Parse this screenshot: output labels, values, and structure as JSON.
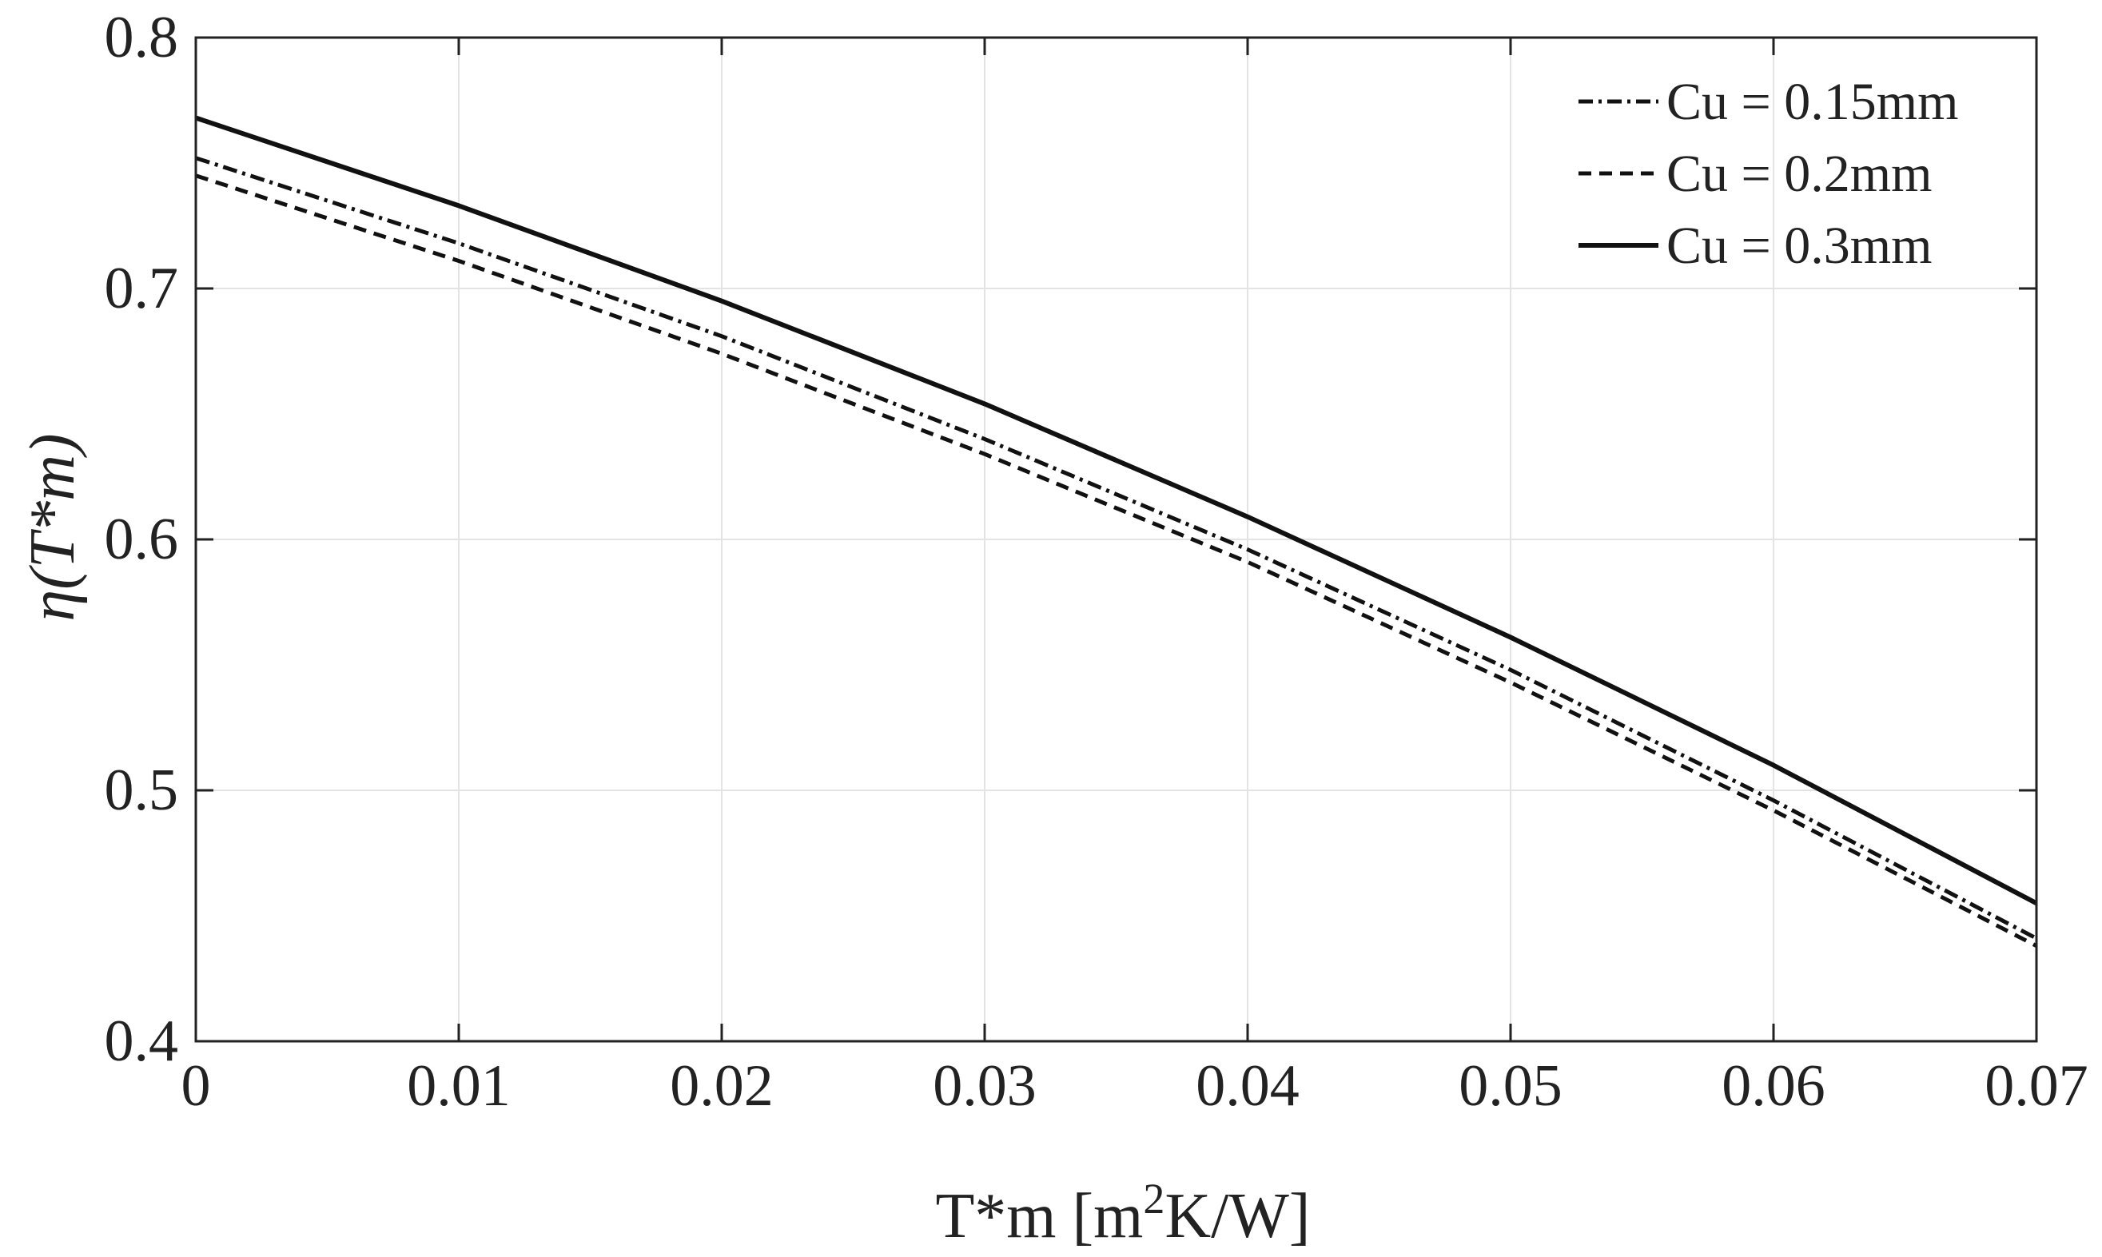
{
  "chart_data": {
    "type": "line",
    "title": "",
    "xlabel": "T*m [m",
    "xlabel_superscript": "2",
    "xlabel_suffix": "K/W]",
    "ylabel": "η(T*m)",
    "xlim": [
      0,
      0.07
    ],
    "ylim": [
      0.4,
      0.8
    ],
    "xticks": [
      "0",
      "0.01",
      "0.02",
      "0.03",
      "0.04",
      "0.05",
      "0.06",
      "0.07"
    ],
    "yticks": [
      "0.4",
      "0.5",
      "0.6",
      "0.7",
      "0.8"
    ],
    "grid": true,
    "legend_position": "top-right",
    "x": [
      0,
      0.01,
      0.02,
      0.03,
      0.04,
      0.05,
      0.06,
      0.07
    ],
    "series": [
      {
        "name": "Cu = 0.15mm",
        "style": "dashdot",
        "values": [
          0.752,
          0.718,
          0.681,
          0.64,
          0.596,
          0.548,
          0.496,
          0.441
        ]
      },
      {
        "name": "Cu = 0.2mm",
        "style": "dashed",
        "values": [
          0.745,
          0.711,
          0.674,
          0.634,
          0.591,
          0.543,
          0.492,
          0.438
        ]
      },
      {
        "name": "Cu = 0.3mm",
        "style": "solid",
        "values": [
          0.768,
          0.733,
          0.695,
          0.654,
          0.609,
          0.561,
          0.51,
          0.455
        ]
      }
    ],
    "colors": {
      "line": "#111111",
      "grid": "#e3e3e3",
      "axis": "#222222"
    }
  }
}
